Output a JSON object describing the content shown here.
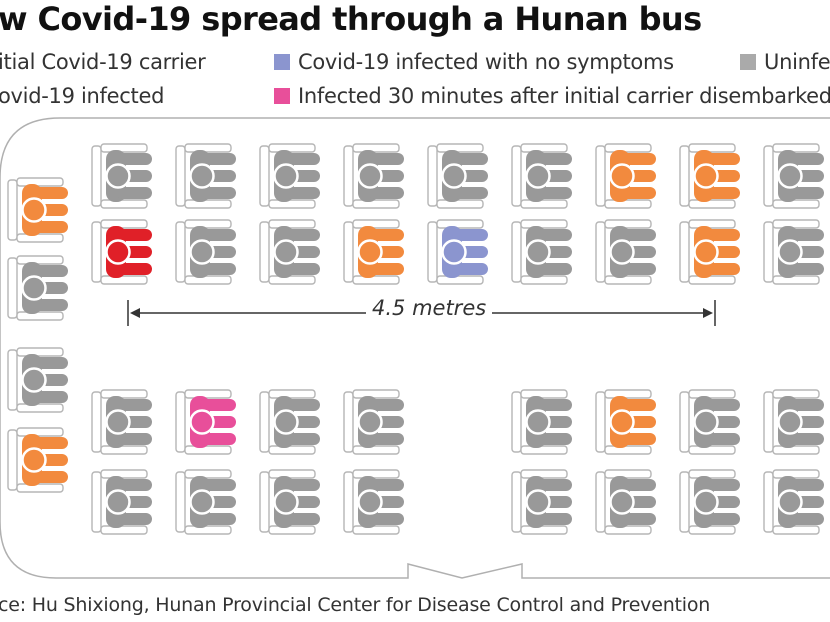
{
  "title": "w Covid-19 spread through a Hunan bus",
  "colors": {
    "carrier": "#e02028",
    "infected": "#f28a3e",
    "asymptomatic": "#8b95cf",
    "late": "#e84f9a",
    "uninfected": "#999999",
    "outline": "#b5b5b5"
  },
  "legend": [
    {
      "key": "carrier",
      "label": "itial Covid-19 carrier",
      "color": "#e02028"
    },
    {
      "key": "infected",
      "label": "ovid-19 infected",
      "color": "#f28a3e"
    },
    {
      "key": "asymptomatic",
      "label": "Covid-19 infected with no symptoms",
      "color": "#8b95cf"
    },
    {
      "key": "late",
      "label": "Infected 30 minutes after initial carrier disembarked",
      "color": "#e84f9a"
    },
    {
      "key": "uninfected",
      "label": "Uninfe",
      "color": "#aaaaaa"
    }
  ],
  "measurement": "4.5 metres",
  "source": "ce: Hu Shixiong, Hunan Provincial Center for Disease Control and Prevention",
  "seats": {
    "side_left": [
      "infected",
      "uninfected",
      "uninfected",
      "infected"
    ],
    "upper_row1": [
      "uninfected",
      "uninfected",
      "uninfected",
      "uninfected",
      "uninfected",
      "uninfected",
      "infected",
      "infected",
      "uninfected"
    ],
    "upper_row2": [
      "carrier",
      "uninfected",
      "uninfected",
      "infected",
      "asymptomatic",
      "uninfected",
      "uninfected",
      "infected",
      "uninfected"
    ],
    "lower_row1": [
      "uninfected",
      "late",
      "uninfected",
      "uninfected",
      null,
      "uninfected",
      "infected",
      "uninfected",
      "uninfected"
    ],
    "lower_row2": [
      "uninfected",
      "uninfected",
      "uninfected",
      "uninfected",
      null,
      "uninfected",
      "uninfected",
      "uninfected",
      "uninfected"
    ]
  }
}
